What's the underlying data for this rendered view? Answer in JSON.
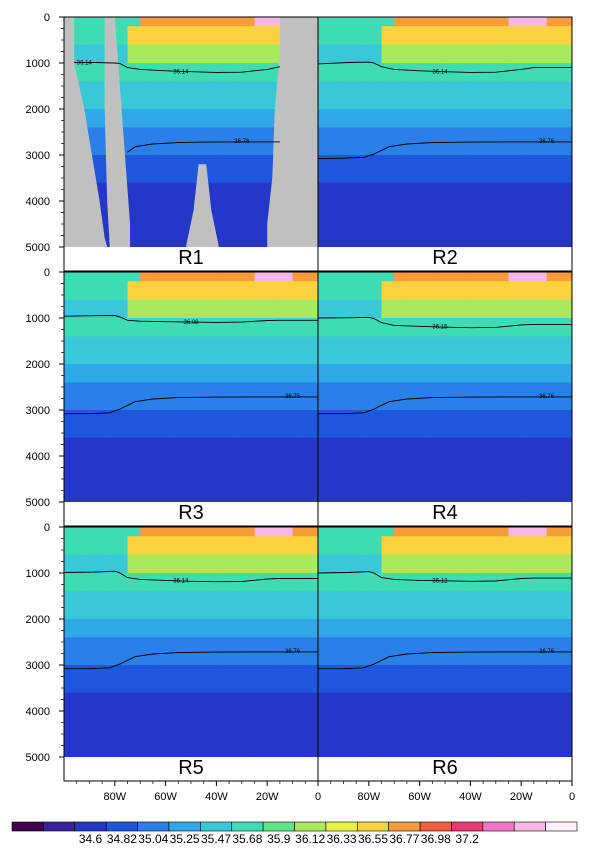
{
  "chart_data": {
    "type": "heatmap",
    "title": "",
    "xlabel": "",
    "ylabel": "",
    "x_tick_labels": [
      "80W",
      "60W",
      "40W",
      "20W",
      "0"
    ],
    "x_ticks_lon": [
      -80,
      -60,
      -40,
      -20,
      0
    ],
    "xlim_lon": [
      -100,
      0
    ],
    "y_tick_labels": [
      "0",
      "1000",
      "2000",
      "3000",
      "4000",
      "5000"
    ],
    "y_ticks": [
      0,
      1000,
      2000,
      3000,
      4000,
      5000
    ],
    "ylim": [
      0,
      5000
    ],
    "y_inverted": true,
    "colorbar": {
      "labels": [
        "34.6",
        "34.82",
        "35.04",
        "35.25",
        "35.47",
        "35.68",
        "35.9",
        "36.12",
        "36.33",
        "36.55",
        "36.77",
        "36.98",
        "37.2"
      ],
      "colors": [
        "#40004d",
        "#3a1f9f",
        "#2537c9",
        "#1f56de",
        "#2a7fe8",
        "#2ea8e6",
        "#38c8d7",
        "#3fdcb4",
        "#5fe68a",
        "#a7ea5c",
        "#e8ef45",
        "#f9d23d",
        "#f79b3b",
        "#f0603e",
        "#e73a78",
        "#ee78c5",
        "#f6b7e6",
        "#fdf1fb"
      ]
    },
    "panels": [
      {
        "label": "R1",
        "contours": [
          {
            "label": "36.14",
            "points": [
              [
                -96,
                990
              ],
              [
                -88,
                990
              ],
              [
                -80,
                1000
              ],
              [
                -78,
                1010
              ],
              [
                -75,
                1100
              ],
              [
                -70,
                1140
              ],
              [
                -60,
                1170
              ],
              [
                -50,
                1190
              ],
              [
                -40,
                1205
              ],
              [
                -30,
                1200
              ],
              [
                -20,
                1140
              ],
              [
                -15,
                1080
              ]
            ],
            "label_at": [
              -54,
              1180
            ],
            "label2_at": [
              -92,
              985
            ]
          },
          {
            "label": "36.76",
            "points": [
              [
                -75,
                2940
              ],
              [
                -72,
                2820
              ],
              [
                -65,
                2760
              ],
              [
                -55,
                2730
              ],
              [
                -45,
                2720
              ],
              [
                -30,
                2715
              ],
              [
                -20,
                2715
              ],
              [
                -15,
                2715
              ]
            ],
            "label_at": [
              -30,
              2700
            ]
          }
        ]
      },
      {
        "label": "R2",
        "contours": [
          {
            "label": "36.14",
            "points": [
              [
                -100,
                1020
              ],
              [
                -88,
                990
              ],
              [
                -80,
                980
              ],
              [
                -78,
                1000
              ],
              [
                -75,
                1080
              ],
              [
                -70,
                1140
              ],
              [
                -60,
                1170
              ],
              [
                -50,
                1190
              ],
              [
                -40,
                1205
              ],
              [
                -30,
                1200
              ],
              [
                -20,
                1140
              ],
              [
                -15,
                1100
              ],
              [
                0,
                1100
              ]
            ],
            "label_at": [
              -52,
              1180
            ]
          },
          {
            "label": "36.76",
            "points": [
              [
                -100,
                3080
              ],
              [
                -90,
                3070
              ],
              [
                -82,
                3050
              ],
              [
                -78,
                2980
              ],
              [
                -72,
                2820
              ],
              [
                -65,
                2760
              ],
              [
                -55,
                2730
              ],
              [
                -40,
                2720
              ],
              [
                -20,
                2715
              ],
              [
                0,
                2715
              ]
            ],
            "label_at": [
              -10,
              2700
            ]
          }
        ]
      },
      {
        "label": "R3",
        "contours": [
          {
            "label": "36.08",
            "points": [
              [
                -100,
                960
              ],
              [
                -88,
                950
              ],
              [
                -80,
                945
              ],
              [
                -78,
                975
              ],
              [
                -75,
                1050
              ],
              [
                -70,
                1070
              ],
              [
                -60,
                1080
              ],
              [
                -50,
                1090
              ],
              [
                -40,
                1095
              ],
              [
                -30,
                1090
              ],
              [
                -20,
                1055
              ],
              [
                -15,
                1050
              ],
              [
                0,
                1050
              ]
            ],
            "label_at": [
              -50,
              1085
            ]
          },
          {
            "label": "36.75",
            "points": [
              [
                -100,
                3080
              ],
              [
                -90,
                3080
              ],
              [
                -82,
                3060
              ],
              [
                -78,
                2980
              ],
              [
                -72,
                2820
              ],
              [
                -65,
                2760
              ],
              [
                -55,
                2730
              ],
              [
                -40,
                2720
              ],
              [
                -20,
                2715
              ],
              [
                0,
                2715
              ]
            ],
            "label_at": [
              -10,
              2700
            ]
          }
        ]
      },
      {
        "label": "R4",
        "contours": [
          {
            "label": "36.15",
            "points": [
              [
                -100,
                1000
              ],
              [
                -88,
                995
              ],
              [
                -80,
                985
              ],
              [
                -78,
                1010
              ],
              [
                -75,
                1100
              ],
              [
                -70,
                1160
              ],
              [
                -60,
                1180
              ],
              [
                -50,
                1200
              ],
              [
                -40,
                1210
              ],
              [
                -30,
                1205
              ],
              [
                -20,
                1150
              ],
              [
                -15,
                1140
              ],
              [
                0,
                1140
              ]
            ],
            "label_at": [
              -52,
              1180
            ]
          },
          {
            "label": "36.76",
            "points": [
              [
                -100,
                3080
              ],
              [
                -90,
                3080
              ],
              [
                -82,
                3060
              ],
              [
                -78,
                2980
              ],
              [
                -72,
                2820
              ],
              [
                -65,
                2760
              ],
              [
                -55,
                2730
              ],
              [
                -40,
                2720
              ],
              [
                -20,
                2715
              ],
              [
                0,
                2715
              ]
            ],
            "label_at": [
              -10,
              2700
            ]
          }
        ]
      },
      {
        "label": "R5",
        "contours": [
          {
            "label": "36.14",
            "points": [
              [
                -100,
                990
              ],
              [
                -88,
                980
              ],
              [
                -80,
                960
              ],
              [
                -78,
                1000
              ],
              [
                -75,
                1100
              ],
              [
                -70,
                1140
              ],
              [
                -60,
                1160
              ],
              [
                -50,
                1180
              ],
              [
                -40,
                1190
              ],
              [
                -30,
                1185
              ],
              [
                -20,
                1130
              ],
              [
                -15,
                1120
              ],
              [
                0,
                1120
              ]
            ],
            "label_at": [
              -54,
              1160
            ]
          },
          {
            "label": "36.76",
            "points": [
              [
                -100,
                3080
              ],
              [
                -90,
                3080
              ],
              [
                -82,
                3060
              ],
              [
                -78,
                2980
              ],
              [
                -72,
                2820
              ],
              [
                -65,
                2760
              ],
              [
                -55,
                2730
              ],
              [
                -40,
                2720
              ],
              [
                -20,
                2715
              ],
              [
                0,
                2715
              ]
            ],
            "label_at": [
              -10,
              2700
            ]
          }
        ]
      },
      {
        "label": "R6",
        "contours": [
          {
            "label": "36.12",
            "points": [
              [
                -100,
                1000
              ],
              [
                -88,
                990
              ],
              [
                -80,
                970
              ],
              [
                -78,
                1000
              ],
              [
                -75,
                1100
              ],
              [
                -70,
                1140
              ],
              [
                -60,
                1160
              ],
              [
                -50,
                1170
              ],
              [
                -40,
                1180
              ],
              [
                -30,
                1175
              ],
              [
                -20,
                1120
              ],
              [
                -15,
                1110
              ],
              [
                0,
                1110
              ]
            ],
            "label_at": [
              -52,
              1160
            ]
          },
          {
            "label": "36.76",
            "points": [
              [
                -100,
                3080
              ],
              [
                -90,
                3080
              ],
              [
                -82,
                3060
              ],
              [
                -78,
                2980
              ],
              [
                -72,
                2820
              ],
              [
                -65,
                2760
              ],
              [
                -55,
                2730
              ],
              [
                -40,
                2720
              ],
              [
                -20,
                2715
              ],
              [
                0,
                2715
              ]
            ],
            "label_at": [
              -10,
              2700
            ]
          }
        ]
      }
    ]
  }
}
